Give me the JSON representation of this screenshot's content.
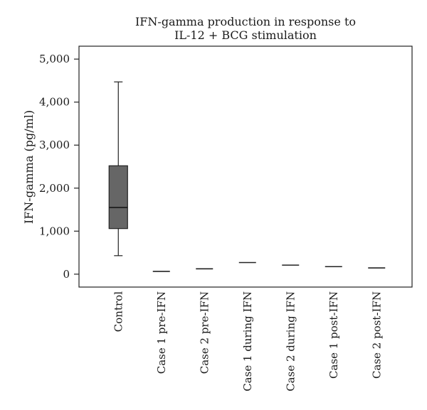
{
  "chart_data": {
    "type": "box",
    "title_lines": [
      "IFN-gamma production in response to",
      "IL-12 + BCG stimulation"
    ],
    "xlabel": "",
    "ylabel": "IFN-gamma (pg/ml)",
    "ylim": [
      -300,
      5300
    ],
    "yticks": [
      0,
      1000,
      2000,
      3000,
      4000,
      5000
    ],
    "ytick_labels": [
      "0",
      "1,000",
      "2,000",
      "3,000",
      "4,000",
      "5,000"
    ],
    "grid": false,
    "box_fill": "#666666",
    "categories": [
      "Control",
      "Case 1 pre-IFN",
      "Case 2 pre-IFN",
      "Case 1 during IFN",
      "Case 2 during IFN",
      "Case 1 post-IFN",
      "Case 2 post-IFN"
    ],
    "boxes": [
      {
        "min": 430,
        "q1": 1060,
        "median": 1550,
        "q3": 2520,
        "max": 4470
      },
      {
        "value": 65
      },
      {
        "value": 125
      },
      {
        "value": 270
      },
      {
        "value": 210
      },
      {
        "value": 175
      },
      {
        "value": 145
      }
    ]
  }
}
